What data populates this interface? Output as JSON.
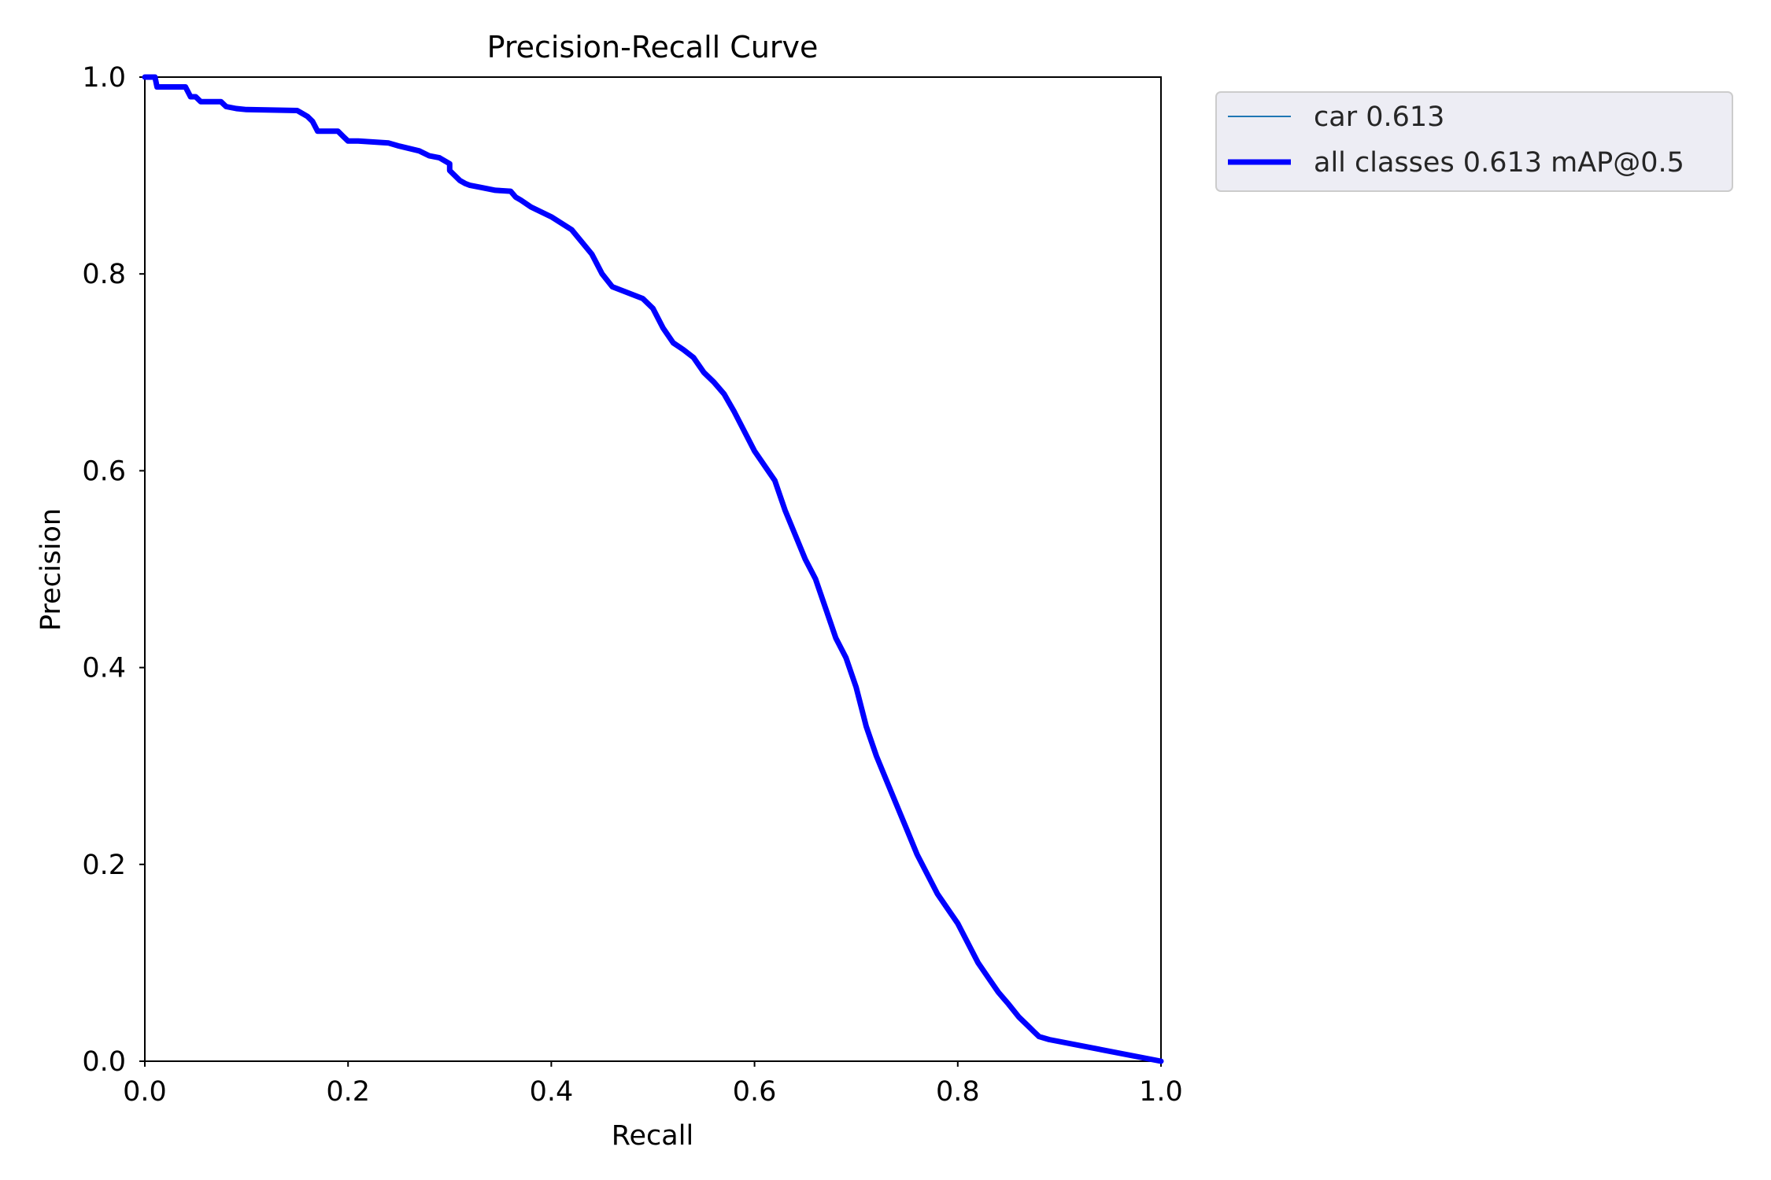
{
  "chart_data": {
    "type": "line",
    "title": "Precision-Recall Curve",
    "xlabel": "Recall",
    "ylabel": "Precision",
    "xlim": [
      0,
      1
    ],
    "ylim": [
      0,
      1
    ],
    "xticks": [
      "0.0",
      "0.2",
      "0.4",
      "0.6",
      "0.8",
      "1.0"
    ],
    "yticks": [
      "0.0",
      "0.2",
      "0.4",
      "0.6",
      "0.8",
      "1.0"
    ],
    "grid": false,
    "legend_position": "outside-top-right",
    "series": [
      {
        "name": "car 0.613",
        "color": "#1f77b4",
        "style": "thin",
        "x": [
          0.0,
          0.01,
          0.012,
          0.04,
          0.045,
          0.05,
          0.055,
          0.075,
          0.08,
          0.09,
          0.1,
          0.15,
          0.16,
          0.165,
          0.17,
          0.19,
          0.195,
          0.2,
          0.21,
          0.24,
          0.25,
          0.27,
          0.28,
          0.29,
          0.3,
          0.3,
          0.31,
          0.315,
          0.32,
          0.33,
          0.345,
          0.36,
          0.365,
          0.37,
          0.38,
          0.4,
          0.42,
          0.44,
          0.45,
          0.46,
          0.47,
          0.49,
          0.5,
          0.51,
          0.52,
          0.53,
          0.54,
          0.55,
          0.56,
          0.57,
          0.58,
          0.6,
          0.62,
          0.63,
          0.64,
          0.65,
          0.66,
          0.67,
          0.68,
          0.69,
          0.7,
          0.71,
          0.72,
          0.73,
          0.74,
          0.75,
          0.76,
          0.77,
          0.78,
          0.79,
          0.8,
          0.81,
          0.82,
          0.83,
          0.84,
          0.85,
          0.86,
          0.87,
          0.875,
          0.88,
          0.89,
          1.0
        ],
        "y": [
          1.0,
          1.0,
          0.99,
          0.99,
          0.98,
          0.98,
          0.975,
          0.975,
          0.97,
          0.968,
          0.967,
          0.966,
          0.96,
          0.955,
          0.945,
          0.945,
          0.94,
          0.935,
          0.935,
          0.933,
          0.93,
          0.925,
          0.92,
          0.918,
          0.912,
          0.905,
          0.895,
          0.892,
          0.89,
          0.888,
          0.885,
          0.884,
          0.878,
          0.875,
          0.868,
          0.858,
          0.845,
          0.82,
          0.8,
          0.787,
          0.783,
          0.775,
          0.765,
          0.745,
          0.73,
          0.723,
          0.715,
          0.7,
          0.69,
          0.678,
          0.66,
          0.62,
          0.59,
          0.56,
          0.535,
          0.51,
          0.49,
          0.46,
          0.43,
          0.41,
          0.38,
          0.34,
          0.31,
          0.285,
          0.26,
          0.235,
          0.21,
          0.19,
          0.17,
          0.155,
          0.14,
          0.12,
          0.1,
          0.085,
          0.07,
          0.058,
          0.045,
          0.035,
          0.03,
          0.025,
          0.022,
          0.0
        ]
      },
      {
        "name": "all classes 0.613 mAP@0.5",
        "color": "#0000ff",
        "style": "thick",
        "x": [
          0.0,
          0.01,
          0.012,
          0.04,
          0.045,
          0.05,
          0.055,
          0.075,
          0.08,
          0.09,
          0.1,
          0.15,
          0.16,
          0.165,
          0.17,
          0.19,
          0.195,
          0.2,
          0.21,
          0.24,
          0.25,
          0.27,
          0.28,
          0.29,
          0.3,
          0.3,
          0.31,
          0.315,
          0.32,
          0.33,
          0.345,
          0.36,
          0.365,
          0.37,
          0.38,
          0.4,
          0.42,
          0.44,
          0.45,
          0.46,
          0.47,
          0.49,
          0.5,
          0.51,
          0.52,
          0.53,
          0.54,
          0.55,
          0.56,
          0.57,
          0.58,
          0.6,
          0.62,
          0.63,
          0.64,
          0.65,
          0.66,
          0.67,
          0.68,
          0.69,
          0.7,
          0.71,
          0.72,
          0.73,
          0.74,
          0.75,
          0.76,
          0.77,
          0.78,
          0.79,
          0.8,
          0.81,
          0.82,
          0.83,
          0.84,
          0.85,
          0.86,
          0.87,
          0.875,
          0.88,
          0.89,
          1.0
        ],
        "y": [
          1.0,
          1.0,
          0.99,
          0.99,
          0.98,
          0.98,
          0.975,
          0.975,
          0.97,
          0.968,
          0.967,
          0.966,
          0.96,
          0.955,
          0.945,
          0.945,
          0.94,
          0.935,
          0.935,
          0.933,
          0.93,
          0.925,
          0.92,
          0.918,
          0.912,
          0.905,
          0.895,
          0.892,
          0.89,
          0.888,
          0.885,
          0.884,
          0.878,
          0.875,
          0.868,
          0.858,
          0.845,
          0.82,
          0.8,
          0.787,
          0.783,
          0.775,
          0.765,
          0.745,
          0.73,
          0.723,
          0.715,
          0.7,
          0.69,
          0.678,
          0.66,
          0.62,
          0.59,
          0.56,
          0.535,
          0.51,
          0.49,
          0.46,
          0.43,
          0.41,
          0.38,
          0.34,
          0.31,
          0.285,
          0.26,
          0.235,
          0.21,
          0.19,
          0.17,
          0.155,
          0.14,
          0.12,
          0.1,
          0.085,
          0.07,
          0.058,
          0.045,
          0.035,
          0.03,
          0.025,
          0.022,
          0.0
        ]
      }
    ]
  }
}
